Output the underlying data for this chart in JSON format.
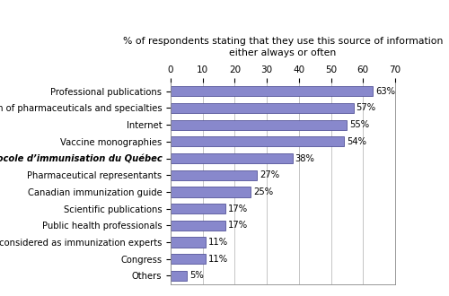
{
  "categories": [
    "Others",
    "Congress",
    "Colleagues considered as immunization experts",
    "Public health professionals",
    "Scientific publications",
    "Canadian immunization guide",
    "Pharmaceutical representants",
    "Protocole d’immunisation du Québec",
    "Vaccine monographies",
    "Internet",
    "Compendium of pharmaceuticals and specialties",
    "Professional publications"
  ],
  "italic_categories": [
    "Protocole d’immunisation du Québec"
  ],
  "values": [
    5,
    11,
    11,
    17,
    17,
    25,
    27,
    38,
    54,
    55,
    57,
    63
  ],
  "bar_color": "#8888cc",
  "bar_edge_color": "#555599",
  "title_line1": "% of respondents stating that they use this source of information",
  "title_line2": "either always or often",
  "xlim": [
    0,
    70
  ],
  "xticks": [
    0,
    10,
    20,
    30,
    40,
    50,
    60,
    70
  ],
  "grid_color": "#bbbbbb",
  "label_fontsize": 7.2,
  "title_fontsize": 7.8,
  "value_fontsize": 7.2,
  "tick_fontsize": 7.5,
  "background_color": "#ffffff",
  "bar_height": 0.6,
  "figsize": [
    5.0,
    3.3
  ],
  "dpi": 100
}
